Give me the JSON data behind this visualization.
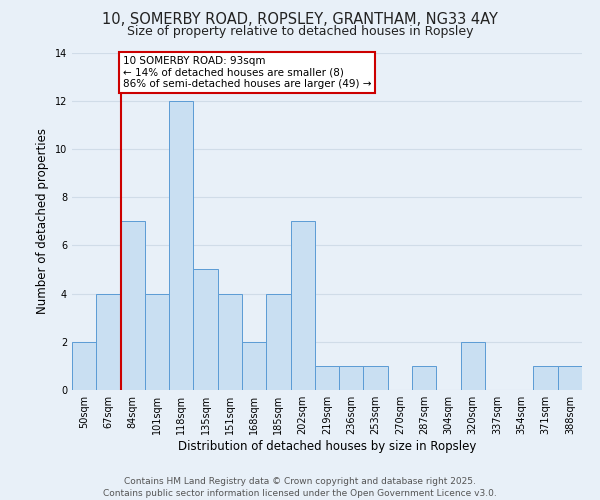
{
  "title": "10, SOMERBY ROAD, ROPSLEY, GRANTHAM, NG33 4AY",
  "subtitle": "Size of property relative to detached houses in Ropsley",
  "xlabel": "Distribution of detached houses by size in Ropsley",
  "ylabel": "Number of detached properties",
  "bin_labels": [
    "50sqm",
    "67sqm",
    "84sqm",
    "101sqm",
    "118sqm",
    "135sqm",
    "151sqm",
    "168sqm",
    "185sqm",
    "202sqm",
    "219sqm",
    "236sqm",
    "253sqm",
    "270sqm",
    "287sqm",
    "304sqm",
    "320sqm",
    "337sqm",
    "354sqm",
    "371sqm",
    "388sqm"
  ],
  "bar_heights": [
    2,
    4,
    7,
    4,
    12,
    5,
    4,
    2,
    4,
    7,
    1,
    1,
    1,
    0,
    1,
    0,
    2,
    0,
    0,
    1,
    1
  ],
  "bar_color": "#c9dff2",
  "bar_edge_color": "#5b9bd5",
  "reference_line_x": 2.0,
  "reference_line_label": "10 SOMERBY ROAD: 93sqm",
  "annotation_line1": "← 14% of detached houses are smaller (8)",
  "annotation_line2": "86% of semi-detached houses are larger (49) →",
  "annotation_box_color": "#ffffff",
  "annotation_box_edge_color": "#cc0000",
  "ref_line_color": "#cc0000",
  "ylim": [
    0,
    14
  ],
  "yticks": [
    0,
    2,
    4,
    6,
    8,
    10,
    12,
    14
  ],
  "footer_line1": "Contains HM Land Registry data © Crown copyright and database right 2025.",
  "footer_line2": "Contains public sector information licensed under the Open Government Licence v3.0.",
  "bg_color": "#e8f0f8",
  "grid_color": "#d0dce8",
  "title_fontsize": 10.5,
  "subtitle_fontsize": 9,
  "axis_label_fontsize": 8.5,
  "tick_fontsize": 7,
  "annotation_fontsize": 7.5,
  "footer_fontsize": 6.5
}
